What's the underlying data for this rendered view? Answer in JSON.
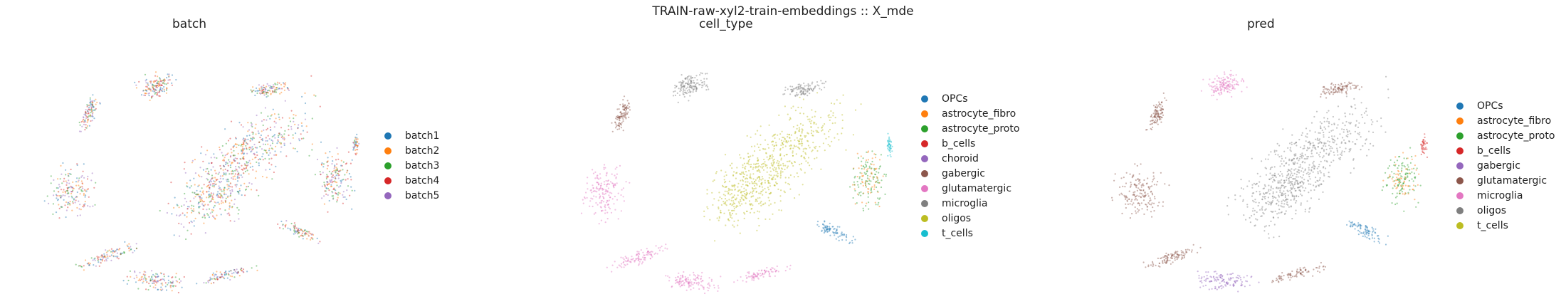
{
  "figure": {
    "title": "TRAIN-raw-xyl2-train-embeddings :: X_mde"
  },
  "chart_data": [
    {
      "type": "scatter",
      "title": "batch",
      "legend_placement": "right",
      "series": [
        {
          "name": "batch1",
          "color": "#1f77b4"
        },
        {
          "name": "batch2",
          "color": "#ff7f0e"
        },
        {
          "name": "batch3",
          "color": "#2ca02c"
        },
        {
          "name": "batch4",
          "color": "#d62728"
        },
        {
          "name": "batch5",
          "color": "#9467bd"
        }
      ]
    },
    {
      "type": "scatter",
      "title": "cell_type",
      "legend_placement": "right",
      "series": [
        {
          "name": "OPCs",
          "color": "#1f77b4"
        },
        {
          "name": "astrocyte_fibro",
          "color": "#ff7f0e"
        },
        {
          "name": "astrocyte_proto",
          "color": "#2ca02c"
        },
        {
          "name": "b_cells",
          "color": "#d62728"
        },
        {
          "name": "choroid",
          "color": "#9467bd"
        },
        {
          "name": "gabergic",
          "color": "#8c564b"
        },
        {
          "name": "glutamatergic",
          "color": "#e377c2"
        },
        {
          "name": "microglia",
          "color": "#7f7f7f"
        },
        {
          "name": "oligos",
          "color": "#bcbd22"
        },
        {
          "name": "t_cells",
          "color": "#17becf"
        }
      ]
    },
    {
      "type": "scatter",
      "title": "pred",
      "legend_placement": "right",
      "series": [
        {
          "name": "OPCs",
          "color": "#1f77b4"
        },
        {
          "name": "astrocyte_fibro",
          "color": "#ff7f0e"
        },
        {
          "name": "astrocyte_proto",
          "color": "#2ca02c"
        },
        {
          "name": "b_cells",
          "color": "#d62728"
        },
        {
          "name": "gabergic",
          "color": "#9467bd"
        },
        {
          "name": "glutamatergic",
          "color": "#8c564b"
        },
        {
          "name": "microglia",
          "color": "#e377c2"
        },
        {
          "name": "oligos",
          "color": "#7f7f7f"
        },
        {
          "name": "t_cells",
          "color": "#bcbd22"
        }
      ]
    }
  ]
}
